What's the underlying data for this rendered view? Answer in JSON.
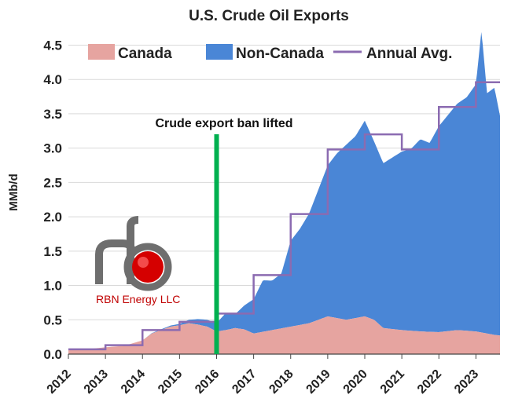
{
  "chart_data": {
    "type": "area",
    "title": "U.S. Crude Oil Exports",
    "ylabel": "MMb/d",
    "xlabel": "",
    "ylim": [
      0,
      4.7
    ],
    "xlim": [
      2012,
      2023.65
    ],
    "yticks": [
      "0.0",
      "0.5",
      "1.0",
      "1.5",
      "2.0",
      "2.5",
      "3.0",
      "3.5",
      "4.0",
      "4.5"
    ],
    "xticks": [
      "2012",
      "2013",
      "2014",
      "2015",
      "2016",
      "2017",
      "2018",
      "2019",
      "2020",
      "2021",
      "2022",
      "2023"
    ],
    "grid": "horizontal",
    "legend_position": "top",
    "legend": [
      "Canada",
      "Non-Canada",
      "Annual Avg."
    ],
    "colors": {
      "canada": "#e6a4a0",
      "non_canada": "#4a86d6",
      "annual_avg": "#8b6bb1",
      "ban_line": "#00b050"
    },
    "series": [
      {
        "name": "Canada",
        "x": [
          2012.0,
          2012.5,
          2013.0,
          2013.5,
          2014.0,
          2014.25,
          2014.5,
          2014.75,
          2015.0,
          2015.25,
          2015.5,
          2015.75,
          2016.0,
          2016.25,
          2016.5,
          2016.75,
          2017.0,
          2017.5,
          2018.0,
          2018.5,
          2019.0,
          2019.5,
          2020.0,
          2020.25,
          2020.5,
          2021.0,
          2021.5,
          2022.0,
          2022.5,
          2023.0,
          2023.5,
          2023.65
        ],
        "values": [
          0.08,
          0.07,
          0.1,
          0.12,
          0.2,
          0.3,
          0.35,
          0.4,
          0.42,
          0.45,
          0.43,
          0.4,
          0.33,
          0.35,
          0.38,
          0.36,
          0.3,
          0.35,
          0.4,
          0.45,
          0.55,
          0.5,
          0.55,
          0.5,
          0.38,
          0.35,
          0.33,
          0.32,
          0.35,
          0.33,
          0.28,
          0.27
        ]
      },
      {
        "name": "Non-Canada",
        "x": [
          2012.0,
          2013.0,
          2014.0,
          2015.0,
          2015.5,
          2016.0,
          2016.25,
          2016.5,
          2016.75,
          2017.0,
          2017.25,
          2017.5,
          2017.75,
          2018.0,
          2018.25,
          2018.5,
          2018.75,
          2019.0,
          2019.25,
          2019.5,
          2019.75,
          2020.0,
          2020.25,
          2020.5,
          2020.75,
          2021.0,
          2021.25,
          2021.5,
          2021.75,
          2022.0,
          2022.25,
          2022.5,
          2022.75,
          2023.0,
          2023.15,
          2023.3,
          2023.5,
          2023.65
        ],
        "values": [
          0.0,
          0.0,
          0.0,
          0.02,
          0.08,
          0.12,
          0.25,
          0.2,
          0.35,
          0.5,
          0.75,
          0.72,
          0.8,
          1.25,
          1.4,
          1.6,
          1.9,
          2.2,
          2.4,
          2.55,
          2.65,
          2.85,
          2.6,
          2.4,
          2.5,
          2.6,
          2.65,
          2.8,
          2.75,
          3.0,
          3.15,
          3.3,
          3.4,
          3.6,
          4.4,
          3.5,
          3.6,
          3.2
        ]
      },
      {
        "name": "Annual Avg.",
        "step": true,
        "x": [
          2012,
          2013,
          2014,
          2015,
          2016,
          2017,
          2018,
          2019,
          2020,
          2021,
          2022,
          2023,
          2023.65
        ],
        "values": [
          0.07,
          0.13,
          0.35,
          0.47,
          0.59,
          1.15,
          2.04,
          2.98,
          3.2,
          2.98,
          3.6,
          3.96,
          3.96
        ]
      }
    ],
    "annotations": [
      {
        "text": "Crude export ban lifted",
        "x": 2016.0
      }
    ],
    "logo_text": "RBN Energy LLC"
  }
}
